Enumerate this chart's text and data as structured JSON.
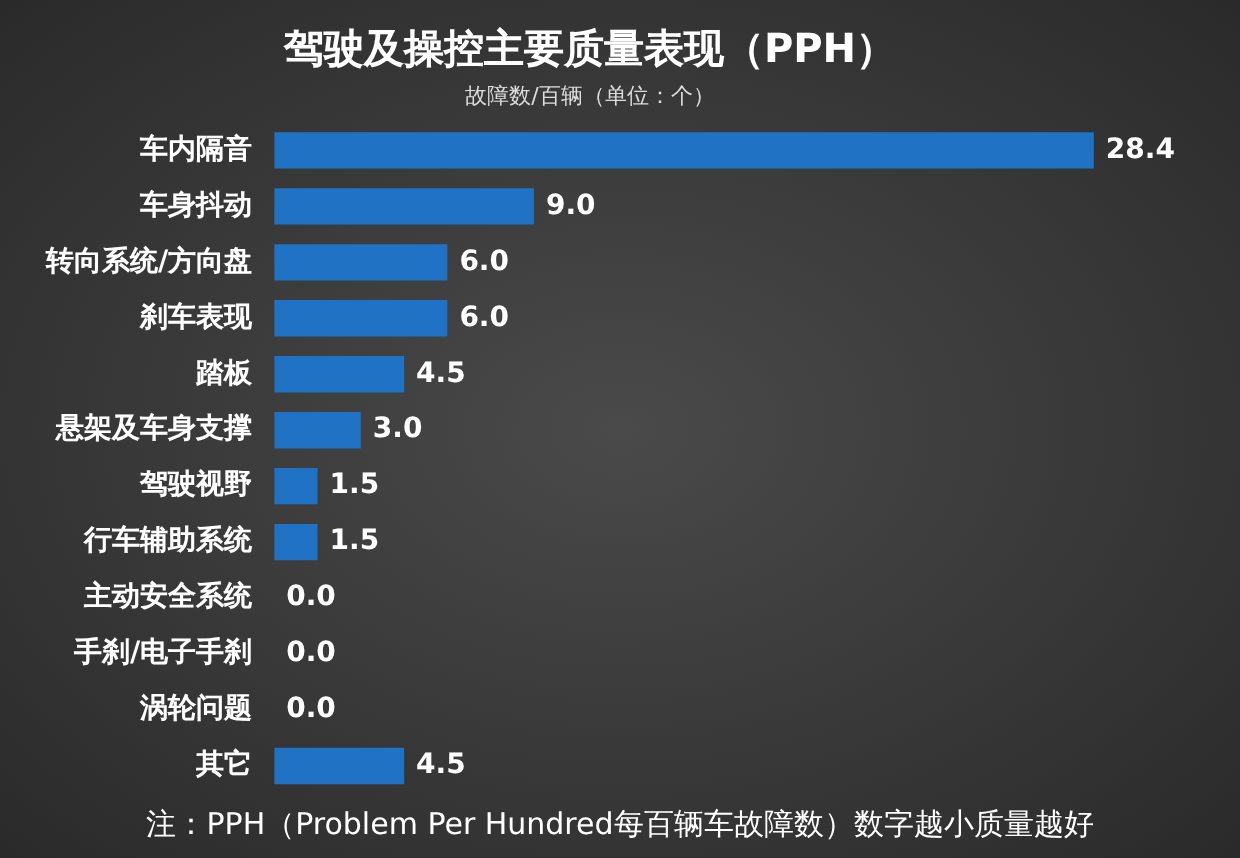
{
  "chart_data": {
    "type": "bar",
    "orientation": "horizontal",
    "title": "驾驶及操控主要质量表现（PPH）",
    "subtitle": "故障数/百辆（单位：个）",
    "categories": [
      "车内隔音",
      "车身抖动",
      "转向系统/方向盘",
      "刹车表现",
      "踏板",
      "悬架及车身支撑",
      "驾驶视野",
      "行车辅助系统",
      "主动安全系统",
      "手刹/电子手刹",
      "涡轮问题",
      "其它"
    ],
    "values": [
      28.4,
      9.0,
      6.0,
      6.0,
      4.5,
      3.0,
      1.5,
      1.5,
      0.0,
      0.0,
      0.0,
      4.5
    ],
    "value_labels": [
      "28.4",
      "9.0",
      "6.0",
      "6.0",
      "4.5",
      "3.0",
      "1.5",
      "1.5",
      "0.0",
      "0.0",
      "0.0",
      "4.5"
    ],
    "color": "#1f72c4",
    "grid": false,
    "legend": false,
    "tick_labels": "y",
    "annotations": [
      "注：PPH（Problem Per Hundred每百辆车故障数）数字越小质量越好"
    ]
  }
}
